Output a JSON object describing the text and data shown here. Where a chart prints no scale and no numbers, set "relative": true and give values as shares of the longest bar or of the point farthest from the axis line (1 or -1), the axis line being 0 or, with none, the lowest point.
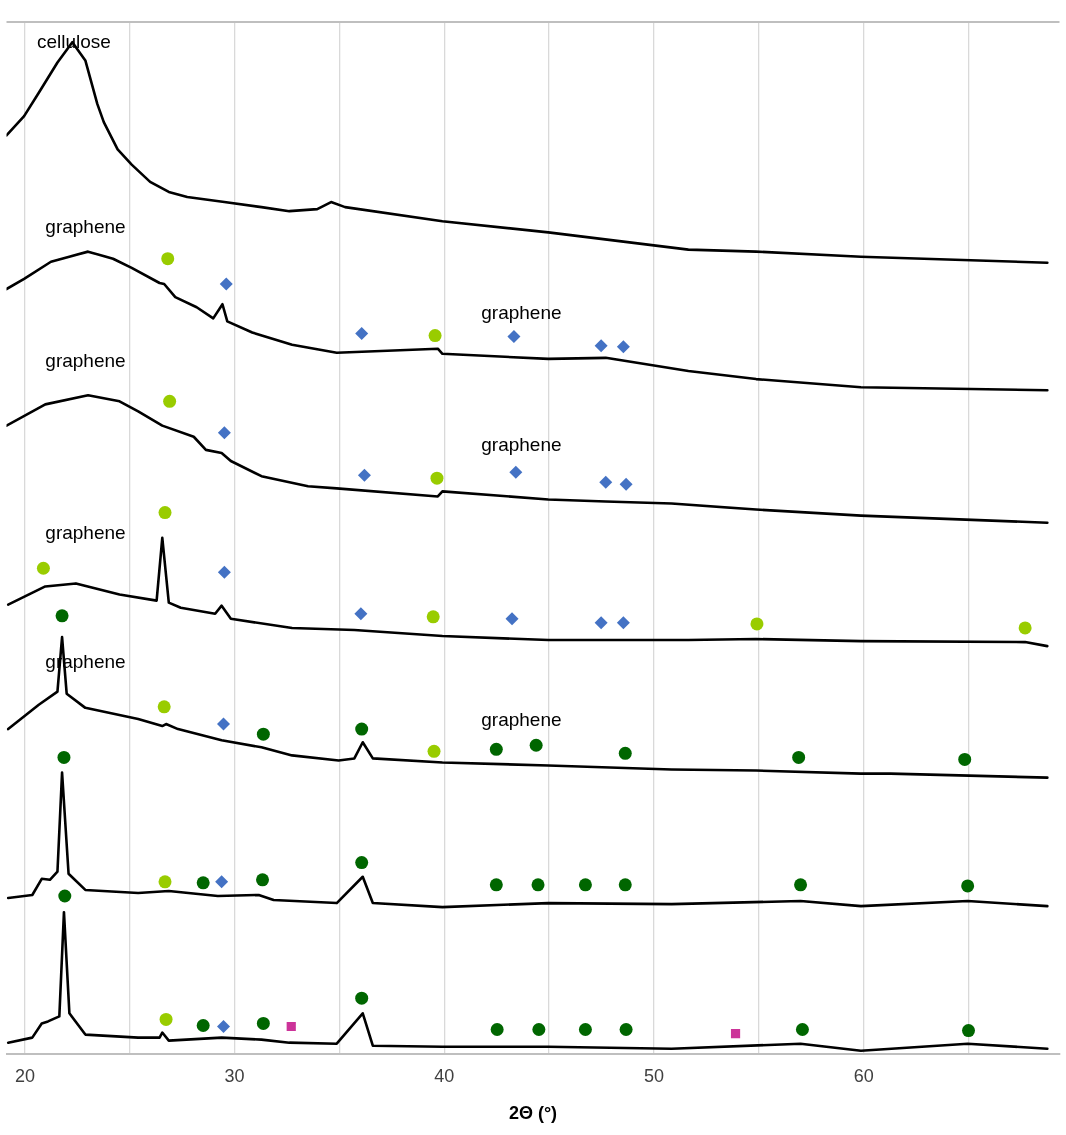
{
  "chart_data": {
    "type": "line",
    "xlabel": "2Θ (°)",
    "relative": true,
    "grid": "x",
    "tick_labels": "x",
    "xlim": [
      19.12,
      69.34
    ],
    "xticks": [
      20,
      {
        "value": 25,
        "label": null
      },
      30,
      {
        "value": 35,
        "label": null
      },
      40,
      {
        "value": 45,
        "label": null
      },
      50,
      {
        "value": 55,
        "label": null
      },
      60,
      {
        "value": 65,
        "label": null
      }
    ],
    "series": [
      {
        "color": "#000000",
        "marker": "none",
        "x": [
          19.12,
          19.96,
          20.66,
          21.55,
          22.26,
          22.88,
          23.45,
          23.76,
          24.42,
          25.09,
          25.97,
          26.86,
          27.74,
          29.51,
          31.28,
          32.61,
          33.94,
          34.6,
          35.27,
          39.91,
          44.96,
          51.64,
          54.87,
          59.87,
          68.76
        ],
        "values": [
          0.908,
          0.927,
          0.95,
          0.98,
          1.0,
          0.982,
          0.939,
          0.921,
          0.894,
          0.879,
          0.862,
          0.852,
          0.847,
          0.842,
          0.837,
          0.833,
          0.835,
          0.842,
          0.837,
          0.823,
          0.812,
          0.795,
          0.793,
          0.788,
          0.782
        ]
      },
      {
        "color": "#000000",
        "marker": "none",
        "x": [
          19.12,
          19.96,
          21.24,
          23.01,
          24.2,
          25.09,
          26.42,
          26.64,
          27.17,
          28.19,
          28.98,
          29.42,
          29.65,
          30.84,
          32.74,
          34.87,
          39.69,
          39.91,
          44.96,
          47.7,
          51.64,
          54.87,
          59.87,
          68.76
        ],
        "values": [
          0.756,
          0.766,
          0.783,
          0.793,
          0.786,
          0.777,
          0.762,
          0.761,
          0.748,
          0.738,
          0.727,
          0.741,
          0.724,
          0.713,
          0.701,
          0.693,
          0.697,
          0.692,
          0.687,
          0.688,
          0.675,
          0.667,
          0.659,
          0.656
        ]
      },
      {
        "color": "#000000",
        "marker": "none",
        "x": [
          19.12,
          20.97,
          23.01,
          24.51,
          25.4,
          26.55,
          28.05,
          28.63,
          29.38,
          29.82,
          31.28,
          33.5,
          34.87,
          39.69,
          39.91,
          44.96,
          47.7,
          50.84,
          54.87,
          59.87,
          68.76
        ],
        "values": [
          0.621,
          0.642,
          0.651,
          0.645,
          0.635,
          0.621,
          0.61,
          0.597,
          0.594,
          0.586,
          0.571,
          0.561,
          0.559,
          0.551,
          0.556,
          0.548,
          0.546,
          0.544,
          0.538,
          0.532,
          0.525
        ]
      },
      {
        "color": "#000000",
        "marker": "none",
        "x": [
          19.2,
          20.97,
          22.43,
          24.51,
          26.28,
          26.55,
          26.86,
          27.43,
          29.07,
          29.38,
          29.82,
          32.74,
          35.71,
          39.91,
          44.96,
          51.64,
          54.87,
          59.87,
          67.7,
          68.76
        ],
        "values": [
          0.444,
          0.462,
          0.465,
          0.454,
          0.448,
          0.51,
          0.446,
          0.441,
          0.435,
          0.443,
          0.43,
          0.421,
          0.419,
          0.413,
          0.409,
          0.409,
          0.41,
          0.408,
          0.407,
          0.403
        ]
      },
      {
        "color": "#000000",
        "marker": "none",
        "x": [
          19.2,
          20.66,
          21.55,
          21.77,
          21.99,
          22.88,
          25.4,
          26.55,
          26.73,
          27.3,
          29.38,
          31.28,
          32.74,
          34.96,
          35.71,
          36.11,
          36.59,
          39.91,
          44.96,
          50.84,
          54.87,
          59.87,
          61.28,
          68.76
        ],
        "values": [
          0.321,
          0.345,
          0.358,
          0.412,
          0.356,
          0.342,
          0.331,
          0.324,
          0.326,
          0.321,
          0.31,
          0.303,
          0.295,
          0.29,
          0.292,
          0.308,
          0.292,
          0.288,
          0.285,
          0.281,
          0.28,
          0.277,
          0.277,
          0.273
        ]
      },
      {
        "color": "#000000",
        "marker": "none",
        "x": [
          19.2,
          20.35,
          20.8,
          21.19,
          21.55,
          21.77,
          22.08,
          22.88,
          25.4,
          26.86,
          29.2,
          31.15,
          31.86,
          34.87,
          36.11,
          36.59,
          39.91,
          44.96,
          50.84,
          56.99,
          59.87,
          64.96,
          68.76
        ],
        "values": [
          0.154,
          0.157,
          0.173,
          0.172,
          0.18,
          0.278,
          0.178,
          0.162,
          0.159,
          0.161,
          0.156,
          0.157,
          0.152,
          0.149,
          0.175,
          0.149,
          0.145,
          0.149,
          0.148,
          0.151,
          0.146,
          0.151,
          0.146
        ]
      },
      {
        "color": "#000000",
        "marker": "none",
        "x": [
          19.2,
          20.35,
          20.8,
          21.1,
          21.64,
          21.86,
          22.12,
          22.88,
          25.4,
          26.42,
          26.55,
          26.86,
          29.38,
          31.28,
          32.61,
          34.87,
          36.11,
          36.59,
          39.91,
          44.96,
          50.84,
          56.99,
          59.87,
          64.96,
          68.76
        ],
        "values": [
          0.011,
          0.016,
          0.03,
          0.032,
          0.037,
          0.14,
          0.04,
          0.019,
          0.016,
          0.016,
          0.021,
          0.013,
          0.016,
          0.014,
          0.011,
          0.01,
          0.04,
          0.008,
          0.007,
          0.007,
          0.005,
          0.01,
          0.003,
          0.01,
          0.005
        ]
      },
      {
        "type": "scatter",
        "color": "#4472c4",
        "marker": "diamond",
        "x": [
          29.6,
          36.06,
          43.32,
          47.48,
          48.54,
          29.51,
          36.19,
          43.41,
          47.7,
          48.67,
          29.51,
          36.02,
          43.23,
          47.48,
          48.54,
          29.47,
          29.38,
          29.47
        ],
        "values": [
          0.761,
          0.712,
          0.709,
          0.7,
          0.699,
          0.614,
          0.572,
          0.575,
          0.565,
          0.563,
          0.476,
          0.435,
          0.43,
          0.426,
          0.426,
          0.326,
          0.17,
          0.027
        ]
      },
      {
        "type": "scatter",
        "color": "#99cc00",
        "marker": "circle",
        "x": [
          26.81,
          39.56,
          26.9,
          39.65,
          26.68,
          20.88,
          39.47,
          67.7,
          54.91,
          26.64,
          39.51,
          26.68,
          26.73
        ],
        "values": [
          0.786,
          0.71,
          0.645,
          0.569,
          0.535,
          0.48,
          0.432,
          0.421,
          0.425,
          0.343,
          0.299,
          0.17,
          0.034
        ]
      },
      {
        "type": "scatter",
        "color": "#006600",
        "marker": "circle",
        "x": [
          21.77,
          21.86,
          21.9,
          36.06,
          36.06,
          36.06,
          31.37,
          31.33,
          31.37,
          28.5,
          28.5,
          42.48,
          44.38,
          48.63,
          56.9,
          64.82,
          42.48,
          44.47,
          46.73,
          48.63,
          56.99,
          64.96,
          42.52,
          44.51,
          46.73,
          48.67,
          57.08,
          65.0
        ],
        "values": [
          0.433,
          0.293,
          0.156,
          0.321,
          0.189,
          0.055,
          0.316,
          0.172,
          0.03,
          0.169,
          0.028,
          0.301,
          0.305,
          0.297,
          0.293,
          0.291,
          0.167,
          0.167,
          0.167,
          0.167,
          0.167,
          0.166,
          0.024,
          0.024,
          0.024,
          0.024,
          0.024,
          0.023
        ]
      },
      {
        "type": "scatter",
        "color": "#cc3399",
        "marker": "square",
        "x": [
          32.7,
          53.89
        ],
        "values": [
          0.027,
          0.02
        ]
      }
    ],
    "annotations": [
      "cellulose",
      "graphene",
      "graphene",
      "graphene",
      "graphene",
      "graphene",
      "graphene",
      "graphene"
    ]
  }
}
